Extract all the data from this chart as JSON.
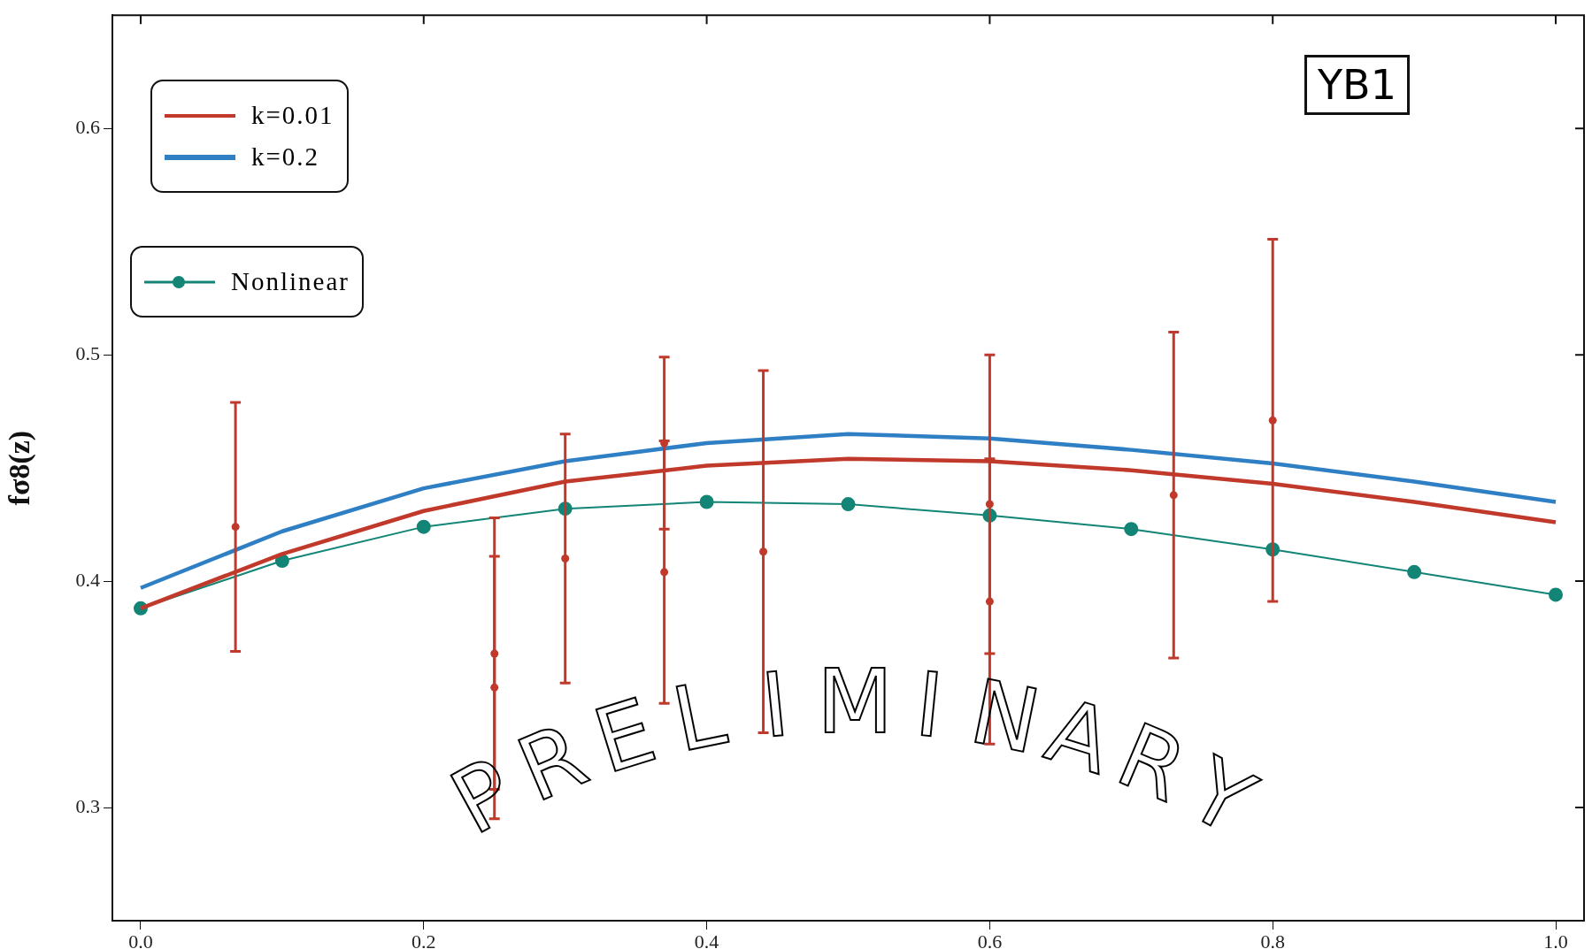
{
  "chart_data": {
    "type": "line",
    "ylabel": "fσ8(z)",
    "xlim": [
      -0.02,
      1.02
    ],
    "ylim": [
      0.25,
      0.65
    ],
    "xticks": [
      {
        "value": 0,
        "label": "0.0"
      },
      0.2,
      0.4,
      0.6,
      0.8,
      {
        "value": 1,
        "label": "1.0"
      }
    ],
    "yticks": [
      0.3,
      0.4,
      0.5,
      0.6
    ],
    "grid": false,
    "legend": "top left",
    "x": [
      0,
      0.1,
      0.2,
      0.3,
      0.4,
      0.5,
      0.6,
      0.7,
      0.8,
      0.9,
      1.0
    ],
    "series": [
      {
        "name": "k=0.01",
        "color": "#c0392b",
        "marker": "none",
        "values": [
          0.388,
          0.412,
          0.431,
          0.444,
          0.451,
          0.454,
          0.453,
          0.449,
          0.443,
          0.435,
          0.426
        ]
      },
      {
        "name": "k=0.2",
        "color": "#2e7fc4",
        "marker": "none",
        "values": [
          0.397,
          0.422,
          0.441,
          0.453,
          0.461,
          0.465,
          0.463,
          0.458,
          0.452,
          0.444,
          0.435
        ]
      },
      {
        "name": "Nonlinear",
        "color": "#128576",
        "marker": "circle",
        "values": [
          0.388,
          0.409,
          0.424,
          0.432,
          0.435,
          0.434,
          0.429,
          0.423,
          0.414,
          0.404,
          0.394
        ]
      },
      {
        "type": "scatter",
        "color": "#c0392b",
        "marker": "circle",
        "x": [
          0.067,
          0.25,
          0.25,
          0.3,
          0.37,
          0.37,
          0.44,
          0.6,
          0.6,
          0.73,
          0.8
        ],
        "values": [
          0.424,
          0.368,
          0.353,
          0.41,
          0.404,
          0.461,
          0.413,
          0.434,
          0.391,
          0.438,
          0.471
        ],
        "errors": [
          0.055,
          0.06,
          0.058,
          0.055,
          0.058,
          0.038,
          0.08,
          0.066,
          0.063,
          0.072,
          0.08
        ]
      }
    ],
    "annotations": [
      "YB1",
      "PRELIMINARY"
    ]
  }
}
